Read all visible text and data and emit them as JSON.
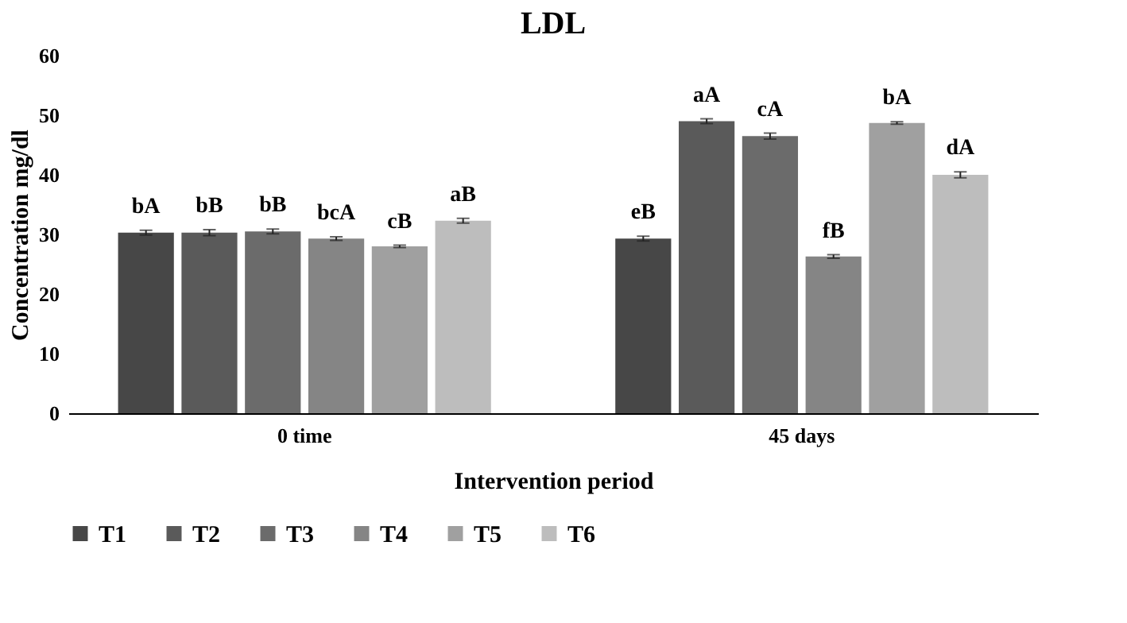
{
  "chart_data": {
    "type": "bar",
    "title": "LDL",
    "xlabel": "Intervention period",
    "ylabel": "Concentration mg/dl",
    "categories": [
      "0 time",
      "45 days"
    ],
    "series": [
      {
        "name": "T1",
        "color": "#474747",
        "values": [
          30.3,
          29.3
        ],
        "errors": [
          0.4,
          0.4
        ],
        "value_labels": [
          "bA",
          "eB"
        ]
      },
      {
        "name": "T2",
        "color": "#5a5a5a",
        "values": [
          30.3,
          49.0
        ],
        "errors": [
          0.5,
          0.4
        ],
        "value_labels": [
          "bB",
          "aA"
        ]
      },
      {
        "name": "T3",
        "color": "#6b6b6b",
        "values": [
          30.5,
          46.5
        ],
        "errors": [
          0.4,
          0.5
        ],
        "value_labels": [
          "bB",
          "cA"
        ]
      },
      {
        "name": "T4",
        "color": "#858585",
        "values": [
          29.3,
          26.3
        ],
        "errors": [
          0.3,
          0.3
        ],
        "value_labels": [
          "bcA",
          "fB"
        ]
      },
      {
        "name": "T5",
        "color": "#a0a0a0",
        "values": [
          28.0,
          48.7
        ],
        "errors": [
          0.2,
          0.2
        ],
        "value_labels": [
          "cB",
          "bA"
        ]
      },
      {
        "name": "T6",
        "color": "#bdbdbd",
        "values": [
          32.3,
          40.0
        ],
        "errors": [
          0.4,
          0.5
        ],
        "value_labels": [
          "aB",
          "dA"
        ]
      }
    ],
    "ylim": [
      0,
      60
    ],
    "yticks": [
      0,
      10,
      20,
      30,
      40,
      50,
      60
    ],
    "grid": false,
    "legend": "bottom"
  }
}
